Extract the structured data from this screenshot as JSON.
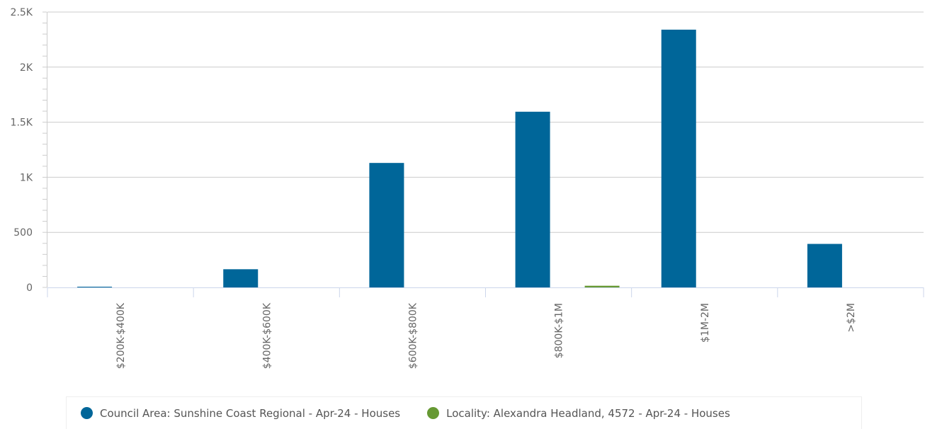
{
  "chart_data": {
    "type": "bar",
    "title": "",
    "xlabel": "",
    "ylabel": "",
    "categories": [
      "$200K-$400K",
      "$400K-$600K",
      "$600K-$800K",
      "$800K-$1M",
      "$1M-2M",
      ">$2M"
    ],
    "series": [
      {
        "name": "Council Area: Sunshine Coast Regional - Apr-24 - Houses",
        "color": "#006699",
        "values": [
          4,
          165,
          1130,
          1595,
          2340,
          395
        ]
      },
      {
        "name": "Locality: Alexandra Headland, 4572 - Apr-24 - Houses",
        "color": "#669933",
        "values": [
          0,
          0,
          0,
          15,
          0,
          0
        ]
      }
    ],
    "ylim": [
      0,
      2500
    ],
    "yticks": [
      {
        "value": 0,
        "label": "0"
      },
      {
        "value": 500,
        "label": "500"
      },
      {
        "value": 1000,
        "label": "1K"
      },
      {
        "value": 1500,
        "label": "1.5K"
      },
      {
        "value": 2000,
        "label": "2K"
      },
      {
        "value": 2500,
        "label": "2.5K"
      }
    ],
    "grid": true,
    "legend_position": "bottom"
  }
}
